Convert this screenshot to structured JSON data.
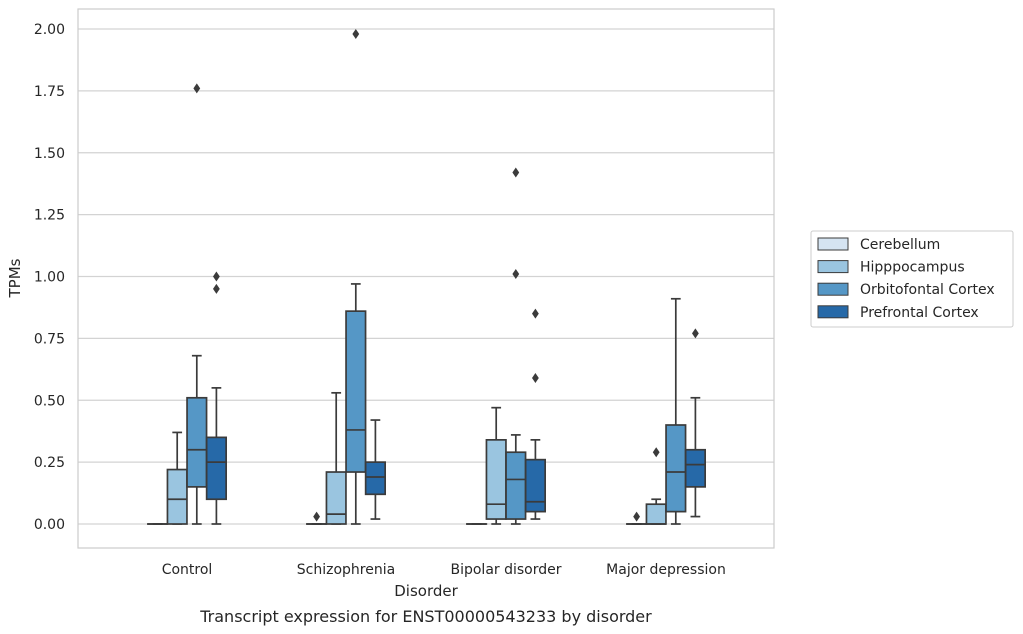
{
  "caption": "Transcript expression for ENST00000543233 by disorder",
  "chart_data": {
    "type": "box",
    "xlabel": "Disorder",
    "ylabel": "TPMs",
    "ylim": [
      -0.1,
      2.08
    ],
    "yticks": [
      0.0,
      0.25,
      0.5,
      0.75,
      1.0,
      1.25,
      1.5,
      1.75,
      2.0
    ],
    "ytick_labels": [
      "0.00",
      "0.25",
      "0.50",
      "0.75",
      "1.00",
      "1.25",
      "1.50",
      "1.75",
      "2.00"
    ],
    "grid": "horizontal",
    "legend_position": "right",
    "categories": [
      "Control",
      "Schizophrenia",
      "Bipolar disorder",
      "Major depression"
    ],
    "series": [
      {
        "name": "Cerebellum",
        "color": "#d5e4f2",
        "boxes": [
          {
            "min": 0.0,
            "q1": 0.0,
            "median": 0.0,
            "q3": 0.0,
            "max": 0.0,
            "outliers": []
          },
          {
            "min": 0.0,
            "q1": 0.0,
            "median": 0.0,
            "q3": 0.0,
            "max": 0.0,
            "outliers": [
              0.03
            ]
          },
          {
            "min": 0.0,
            "q1": 0.0,
            "median": 0.0,
            "q3": 0.0,
            "max": 0.0,
            "outliers": []
          },
          {
            "min": 0.0,
            "q1": 0.0,
            "median": 0.0,
            "q3": 0.0,
            "max": 0.0,
            "outliers": [
              0.03
            ]
          }
        ]
      },
      {
        "name": "Hipppocampus",
        "color": "#9ac5e0",
        "boxes": [
          {
            "min": 0.0,
            "q1": 0.0,
            "median": 0.1,
            "q3": 0.22,
            "max": 0.37,
            "outliers": []
          },
          {
            "min": 0.0,
            "q1": 0.0,
            "median": 0.04,
            "q3": 0.21,
            "max": 0.53,
            "outliers": []
          },
          {
            "min": 0.0,
            "q1": 0.02,
            "median": 0.08,
            "q3": 0.34,
            "max": 0.47,
            "outliers": []
          },
          {
            "min": 0.0,
            "q1": 0.0,
            "median": 0.0,
            "q3": 0.08,
            "max": 0.1,
            "outliers": [
              0.29
            ]
          }
        ]
      },
      {
        "name": "Orbitofontal Cortex",
        "color": "#5597c6",
        "boxes": [
          {
            "min": 0.0,
            "q1": 0.15,
            "median": 0.3,
            "q3": 0.51,
            "max": 0.68,
            "outliers": [
              1.76
            ]
          },
          {
            "min": 0.0,
            "q1": 0.21,
            "median": 0.38,
            "q3": 0.86,
            "max": 0.97,
            "outliers": [
              1.98
            ]
          },
          {
            "min": 0.0,
            "q1": 0.02,
            "median": 0.18,
            "q3": 0.29,
            "max": 0.36,
            "outliers": [
              1.01,
              1.42
            ]
          },
          {
            "min": 0.0,
            "q1": 0.05,
            "median": 0.21,
            "q3": 0.4,
            "max": 0.91,
            "outliers": []
          }
        ]
      },
      {
        "name": "Prefrontal Cortex",
        "color": "#2669a8",
        "boxes": [
          {
            "min": 0.0,
            "q1": 0.1,
            "median": 0.25,
            "q3": 0.35,
            "max": 0.55,
            "outliers": [
              0.95,
              1.0
            ]
          },
          {
            "min": 0.02,
            "q1": 0.12,
            "median": 0.19,
            "q3": 0.25,
            "max": 0.42,
            "outliers": []
          },
          {
            "min": 0.02,
            "q1": 0.05,
            "median": 0.09,
            "q3": 0.26,
            "max": 0.34,
            "outliers": [
              0.59,
              0.85
            ]
          },
          {
            "min": 0.03,
            "q1": 0.15,
            "median": 0.24,
            "q3": 0.3,
            "max": 0.51,
            "outliers": [
              0.77
            ]
          }
        ]
      }
    ]
  }
}
